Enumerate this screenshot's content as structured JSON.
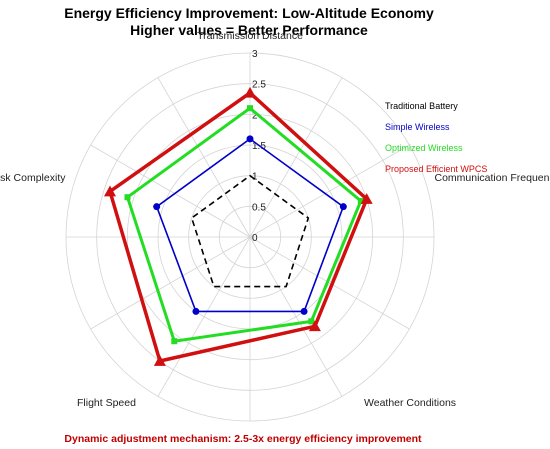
{
  "chart_data": {
    "type": "radar",
    "title": "Energy Efficiency Improvement: Low-Altitude Economy",
    "subtitle": "Higher values = Better Performance",
    "axes": [
      "Transmission Distance",
      "Communication Frequency",
      "Weather Conditions",
      "Flight Speed",
      "Task Complexity"
    ],
    "rlim": [
      0,
      3
    ],
    "rticks": [
      "0",
      "0.5",
      "1",
      "1.5",
      "2",
      "2.5",
      "3"
    ],
    "series": [
      {
        "name": "Traditional Battery",
        "color": "#000000",
        "style": "dashed",
        "values": [
          1,
          1,
          1,
          1,
          1
        ]
      },
      {
        "name": "Simple Wireless",
        "color": "#0000c8",
        "style": "solid",
        "marker": "circle",
        "values": [
          1.6,
          1.6,
          1.5,
          1.5,
          1.6
        ]
      },
      {
        "name": "Optimized Wireless",
        "color": "#22dd22",
        "style": "solid",
        "marker": "square",
        "values": [
          2.1,
          1.9,
          1.7,
          2.1,
          2.1
        ]
      },
      {
        "name": "Proposed Efficient WPCS",
        "color": "#d01010",
        "style": "solid",
        "marker": "triangle",
        "values": [
          2.35,
          2.0,
          1.8,
          2.5,
          2.4
        ]
      }
    ],
    "legend_position": "right",
    "grid": true
  },
  "annotation": "Dynamic adjustment mechanism: 2.5-3x energy efficiency improvement"
}
